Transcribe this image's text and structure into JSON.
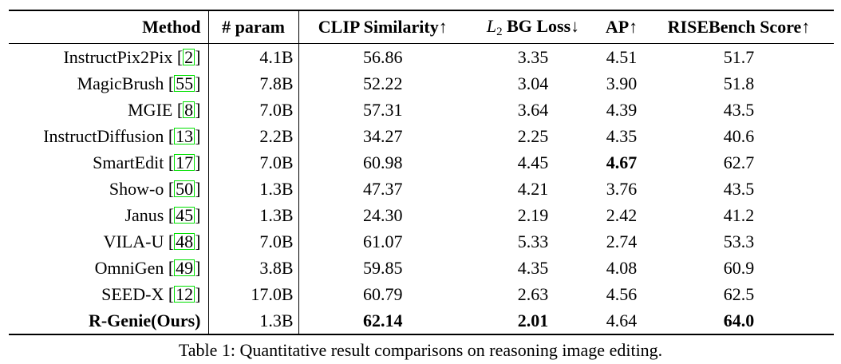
{
  "colors": {
    "citation_box_border": "#00e000",
    "text": "#000000",
    "rules": "#000000",
    "background": "#ffffff"
  },
  "table": {
    "header": {
      "method": "Method",
      "param": "# param",
      "metrics": [
        {
          "label": "CLIP Similarity",
          "arrow": "↑"
        },
        {
          "math_italic": "L",
          "math_sub": "2",
          "label": " BG Loss",
          "arrow": "↓"
        },
        {
          "label": "AP",
          "arrow": "↑"
        },
        {
          "label": "RISEBench Score",
          "arrow": "↑"
        }
      ]
    },
    "rows": [
      {
        "method": "InstructPix2Pix",
        "cite": "2",
        "param": "4.1B",
        "values": [
          "56.86",
          "3.35",
          "4.51",
          "51.7"
        ],
        "bold_values": [],
        "bold_method": false
      },
      {
        "method": "MagicBrush",
        "cite": "55",
        "param": "7.8B",
        "values": [
          "52.22",
          "3.04",
          "3.90",
          "51.8"
        ],
        "bold_values": [],
        "bold_method": false
      },
      {
        "method": "MGIE",
        "cite": "8",
        "param": "7.0B",
        "values": [
          "57.31",
          "3.64",
          "4.39",
          "43.5"
        ],
        "bold_values": [],
        "bold_method": false
      },
      {
        "method": "InstructDiffusion",
        "cite": "13",
        "param": "2.2B",
        "values": [
          "34.27",
          "2.25",
          "4.35",
          "40.6"
        ],
        "bold_values": [],
        "bold_method": false
      },
      {
        "method": "SmartEdit",
        "cite": "17",
        "param": "7.0B",
        "values": [
          "60.98",
          "4.45",
          "4.67",
          "62.7"
        ],
        "bold_values": [
          2
        ],
        "bold_method": false
      },
      {
        "method": "Show-o",
        "cite": "50",
        "param": "1.3B",
        "values": [
          "47.37",
          "4.21",
          "3.76",
          "43.5"
        ],
        "bold_values": [],
        "bold_method": false
      },
      {
        "method": "Janus",
        "cite": "45",
        "param": "1.3B",
        "values": [
          "24.30",
          "2.19",
          "2.42",
          "41.2"
        ],
        "bold_values": [],
        "bold_method": false
      },
      {
        "method": "VILA-U",
        "cite": "48",
        "param": "7.0B",
        "values": [
          "61.07",
          "5.33",
          "2.74",
          "53.3"
        ],
        "bold_values": [],
        "bold_method": false
      },
      {
        "method": "OmniGen",
        "cite": "49",
        "param": "3.8B",
        "values": [
          "59.85",
          "4.35",
          "4.08",
          "60.9"
        ],
        "bold_values": [],
        "bold_method": false
      },
      {
        "method": "SEED-X",
        "cite": "12",
        "param": "17.0B",
        "values": [
          "60.79",
          "2.63",
          "4.56",
          "62.5"
        ],
        "bold_values": [],
        "bold_method": false
      },
      {
        "method": "R-Genie(Ours)",
        "cite": null,
        "param": "1.3B",
        "values": [
          "62.14",
          "2.01",
          "4.64",
          "64.0"
        ],
        "bold_values": [
          0,
          1,
          3
        ],
        "bold_method": true
      }
    ],
    "caption": "Table 1: Quantitative result comparisons on reasoning image editing."
  }
}
